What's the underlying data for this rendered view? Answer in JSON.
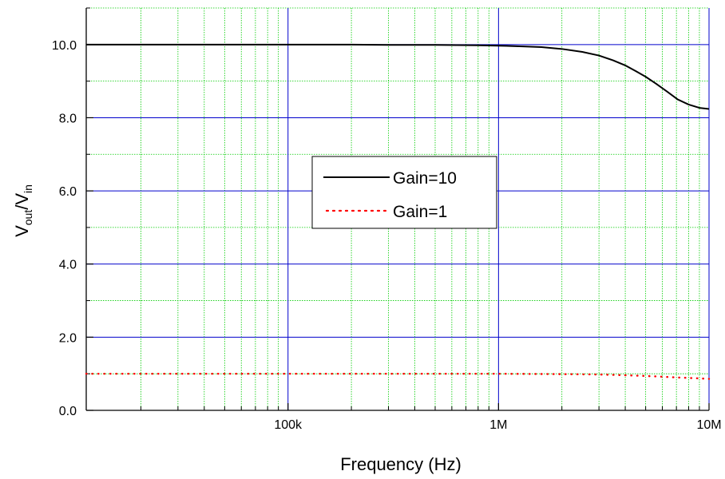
{
  "chart_data": {
    "type": "line",
    "xlabel": "Frequency (Hz)",
    "ylabel": {
      "main": "V",
      "sub1": "out",
      "slash": "/V",
      "sub2": "in"
    },
    "x_scale": "log",
    "xlim": [
      11000,
      10000000
    ],
    "ylim": [
      0,
      11
    ],
    "x_ticks": [
      {
        "value": 100000,
        "label": "100k"
      },
      {
        "value": 1000000,
        "label": "1M"
      },
      {
        "value": 10000000,
        "label": "10M"
      }
    ],
    "y_ticks": [
      {
        "value": 0,
        "label": "0.0"
      },
      {
        "value": 2,
        "label": "2.0"
      },
      {
        "value": 4,
        "label": "4.0"
      },
      {
        "value": 6,
        "label": "6.0"
      },
      {
        "value": 8,
        "label": "8.0"
      },
      {
        "value": 10,
        "label": "10.0"
      }
    ],
    "grid": true,
    "legend_position": "center",
    "series": [
      {
        "name": "Gain=10",
        "color": "#000000",
        "style": "solid",
        "points": [
          [
            11000,
            10.0
          ],
          [
            50000,
            10.0
          ],
          [
            100000,
            10.0
          ],
          [
            200000,
            10.0
          ],
          [
            300000,
            9.99
          ],
          [
            500000,
            9.99
          ],
          [
            800000,
            9.98
          ],
          [
            1000000,
            9.97
          ],
          [
            1300000,
            9.95
          ],
          [
            1600000,
            9.93
          ],
          [
            2000000,
            9.88
          ],
          [
            2500000,
            9.8
          ],
          [
            3000000,
            9.7
          ],
          [
            3500000,
            9.57
          ],
          [
            4000000,
            9.43
          ],
          [
            4500000,
            9.27
          ],
          [
            5000000,
            9.12
          ],
          [
            5600000,
            8.93
          ],
          [
            6300000,
            8.72
          ],
          [
            7100000,
            8.5
          ],
          [
            8000000,
            8.36
          ],
          [
            9000000,
            8.27
          ],
          [
            10000000,
            8.24
          ]
        ]
      },
      {
        "name": "Gain=1",
        "color": "#ff0000",
        "style": "dotted",
        "points": [
          [
            11000,
            1.0
          ],
          [
            100000,
            1.0
          ],
          [
            1000000,
            1.0
          ],
          [
            2000000,
            0.99
          ],
          [
            3000000,
            0.98
          ],
          [
            4000000,
            0.96
          ],
          [
            5000000,
            0.94
          ],
          [
            6000000,
            0.92
          ],
          [
            7000000,
            0.9
          ],
          [
            8500000,
            0.88
          ],
          [
            10000000,
            0.86
          ]
        ]
      }
    ],
    "colors": {
      "major_grid": "#0000cc",
      "minor_grid": "#00cc00"
    }
  }
}
